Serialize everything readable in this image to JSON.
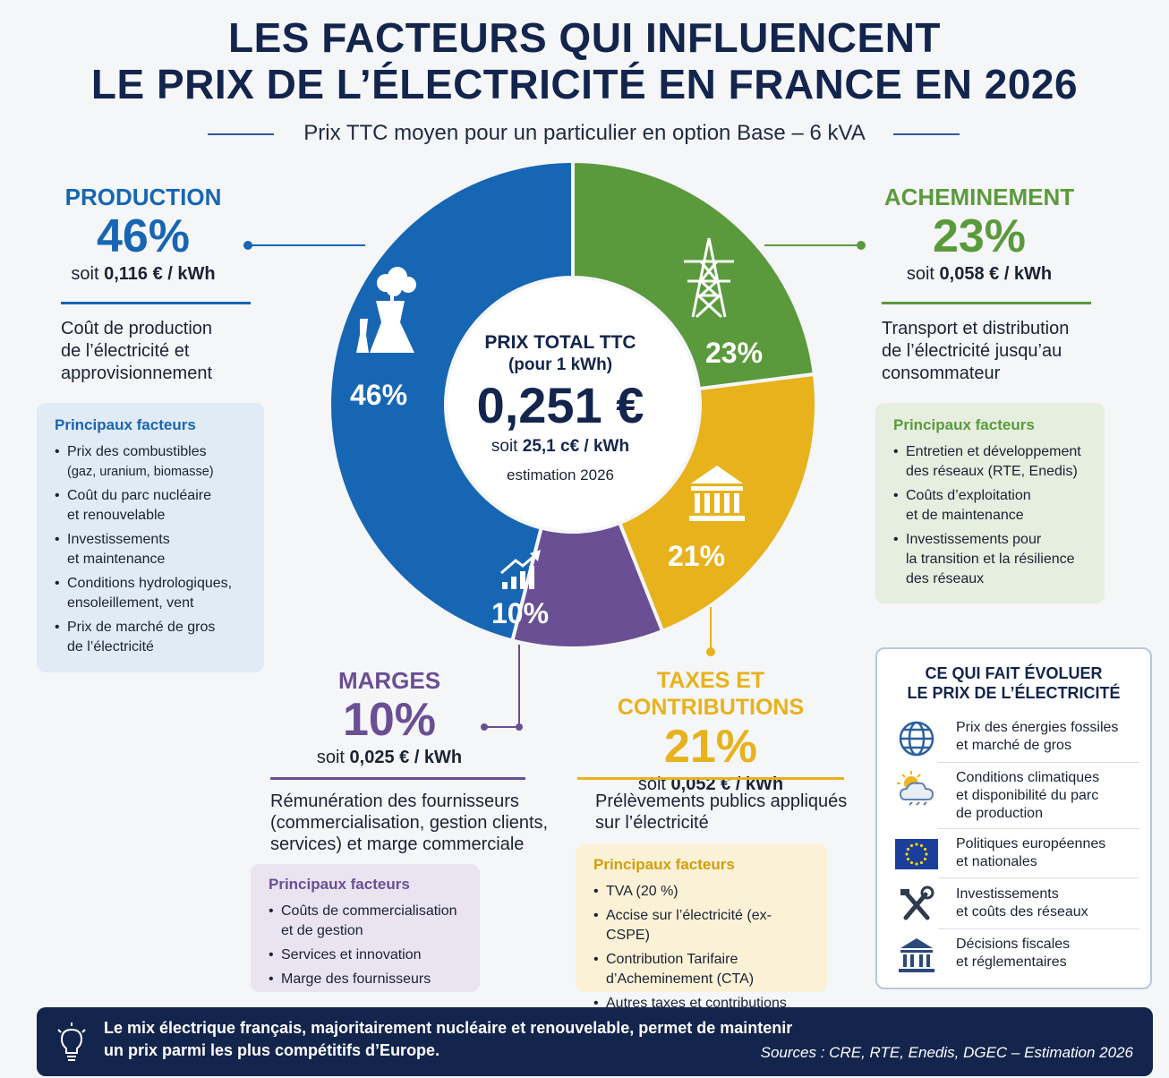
{
  "title": {
    "line1": "LES FACTEURS QUI INFLUENCENT",
    "line2": "LE PRIX DE L’ÉLECTRICITÉ EN FRANCE EN 2026",
    "subtitle": "Prix TTC moyen pour un particulier en option Base – 6 kVA"
  },
  "colors": {
    "production": "#1766b3",
    "acheminement": "#5b9a3c",
    "taxes": "#e7b21c",
    "marges": "#6a4f95",
    "navy": "#13254d"
  },
  "center": {
    "label1": "PRIX TOTAL TTC",
    "label2": "(pour 1 kWh)",
    "value": "0,251 €",
    "cents_prefix": "soit ",
    "cents": "25,1 c€ / kWh",
    "estimate": "estimation 2026"
  },
  "chart_data": {
    "type": "pie",
    "donut": true,
    "unit": "%",
    "start": "top",
    "direction": "clockwise",
    "slices": [
      {
        "name": "ACHEMINEMENT",
        "value": 23,
        "label": "23%",
        "color": "#5b9a3c",
        "icon": "pylon-icon"
      },
      {
        "name": "TAXES ET CONTRIBUTIONS",
        "value": 21,
        "label": "21%",
        "color": "#e7b21c",
        "icon": "government-building-icon"
      },
      {
        "name": "MARGES",
        "value": 10,
        "label": "10%",
        "color": "#6a4f95",
        "icon": "growth-chart-icon"
      },
      {
        "name": "PRODUCTION",
        "value": 46,
        "label": "46%",
        "color": "#1766b3",
        "icon": "power-plant-icon"
      }
    ]
  },
  "production": {
    "name": "PRODUCTION",
    "pct": "46%",
    "kwh_prefix": "soit ",
    "kwh_value": "0,116 €",
    "kwh_unit": " / kWh",
    "desc1": "Coût de production",
    "desc2": "de l’électricité et",
    "desc3": "approvisionnement",
    "box_title": "Principaux facteurs",
    "factors": [
      {
        "l1": "Prix des combustibles",
        "l2": "(gaz, uranium, biomasse)"
      },
      {
        "l1": "Coût du parc nucléaire",
        "l2": "et renouvelable"
      },
      {
        "l1": "Investissements",
        "l2": "et maintenance"
      },
      {
        "l1": "Conditions hydrologiques,",
        "l2": "ensoleillement, vent"
      },
      {
        "l1": "Prix de marché de gros",
        "l2": "de l’électricité"
      }
    ]
  },
  "acheminement": {
    "name": "ACHEMINEMENT",
    "pct": "23%",
    "kwh_prefix": "soit ",
    "kwh_value": "0,058 €",
    "kwh_unit": " / kWh",
    "desc1": "Transport et distribution",
    "desc2": "de l’électricité jusqu’au",
    "desc3": "consommateur",
    "box_title": "Principaux facteurs",
    "factors": [
      {
        "l1": "Entretien et développement",
        "l2": "des réseaux (RTE, Enedis)"
      },
      {
        "l1": "Coûts d’exploitation",
        "l2": "et de maintenance"
      },
      {
        "l1": "Investissements pour",
        "l2": "la transition et la résilience",
        "l3": "des réseaux"
      }
    ]
  },
  "marges": {
    "name": "MARGES",
    "pct": "10%",
    "kwh_prefix": "soit ",
    "kwh_value": "0,025 €",
    "kwh_unit": " / kWh",
    "desc1": "Rémunération des fournisseurs",
    "desc2": "(commercialisation, gestion clients,",
    "desc3": "services) et marge commerciale",
    "box_title": "Principaux facteurs",
    "factors": [
      {
        "l1": "Coûts de commercialisation",
        "l2": "et de gestion"
      },
      {
        "l1": "Services et innovation"
      },
      {
        "l1": "Marge des fournisseurs"
      }
    ]
  },
  "taxes": {
    "name": "TAXES ET CONTRIBUTIONS",
    "pct": "21%",
    "kwh_prefix": "soit ",
    "kwh_value": "0,052 €",
    "kwh_unit": " / kWh",
    "desc1": "Prélèvements publics appliqués",
    "desc2": "sur l’électricité",
    "box_title": "Principaux facteurs",
    "factors": [
      {
        "l1": "TVA (20 %)"
      },
      {
        "l1": "Accise sur l’électricité (ex-CSPE)"
      },
      {
        "l1": "Contribution Tarifaire",
        "l2": "d’Acheminement (CTA)"
      },
      {
        "l1": "Autres taxes et contributions"
      }
    ]
  },
  "evolution": {
    "title1": "CE QUI FAIT ÉVOLUER",
    "title2": "LE PRIX DE L’ÉLECTRICITÉ",
    "items": [
      {
        "icon": "globe-icon",
        "l1": "Prix des énergies fossiles",
        "l2": "et marché de gros"
      },
      {
        "icon": "weather-icon",
        "l1": "Conditions climatiques",
        "l2": "et disponibilité du parc",
        "l3": "de production"
      },
      {
        "icon": "eu-flag-icon",
        "l1": "Politiques européennes",
        "l2": "et nationales"
      },
      {
        "icon": "tools-icon",
        "l1": "Investissements",
        "l2": "et coûts des réseaux"
      },
      {
        "icon": "government-building-icon",
        "l1": "Décisions fiscales",
        "l2": "et réglementaires"
      }
    ]
  },
  "footer": {
    "icon": "lightbulb-icon",
    "line1": "Le mix électrique français, majoritairement nucléaire et renouvelable, permet de maintenir",
    "line2": "un prix parmi les plus compétitifs d’Europe.",
    "sources": "Sources : CRE, RTE, Enedis, DGEC – Estimation 2026"
  }
}
